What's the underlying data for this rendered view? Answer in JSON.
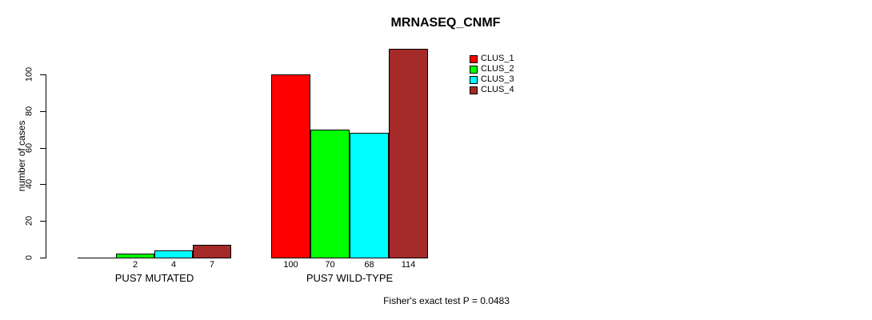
{
  "chart_data": {
    "type": "bar",
    "title": "MRNASEQ_CNMF",
    "ylabel": "number of cases",
    "xlabel": "",
    "series": [
      {
        "name": "CLUS_1",
        "color": "#FF0000"
      },
      {
        "name": "CLUS_2",
        "color": "#00FF00"
      },
      {
        "name": "CLUS_3",
        "color": "#00FFFF"
      },
      {
        "name": "CLUS_4",
        "color": "#A52A2A"
      }
    ],
    "categories": [
      "PUS7 MUTATED",
      "PUS7 WILD-TYPE"
    ],
    "values": [
      [
        0,
        2,
        4,
        7
      ],
      [
        100,
        70,
        68,
        114
      ]
    ],
    "bar_labels": [
      [
        "",
        "2",
        "4",
        "7"
      ],
      [
        "100",
        "70",
        "68",
        "114"
      ]
    ],
    "yticks": [
      0,
      20,
      40,
      60,
      80,
      100
    ],
    "ylim": [
      0,
      100
    ],
    "grid": false,
    "legend_position": "top-right",
    "annotation": "Fisher's exact test P = 0.0483"
  },
  "colors": {
    "background": "#FFFFFF",
    "axis": "#000000",
    "text": "#000000"
  }
}
